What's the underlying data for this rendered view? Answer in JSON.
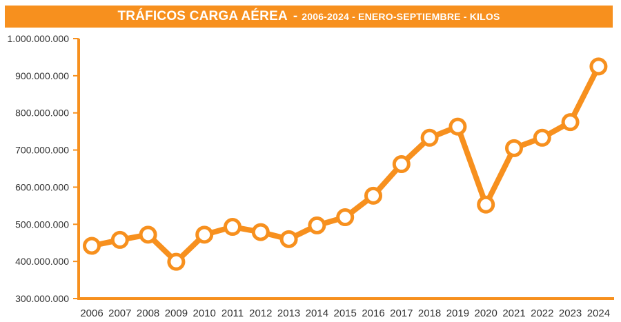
{
  "title": {
    "main": "TRÁFICOS CARGA AÉREA",
    "separator": "-",
    "subtitle": "2006-2024 - ENERO-SEPTIEMBRE - KILOS"
  },
  "colors": {
    "accent": "#f7901e",
    "text": "#333333",
    "background": "#ffffff"
  },
  "chart_data": {
    "type": "line",
    "title": "TRÁFICOS CARGA AÉREA - 2006-2024 - ENERO-SEPTIEMBRE - KILOS",
    "xlabel": "",
    "ylabel": "",
    "categories": [
      "2006",
      "2007",
      "2008",
      "2009",
      "2010",
      "2011",
      "2012",
      "2013",
      "2014",
      "2015",
      "2016",
      "2017",
      "2018",
      "2019",
      "2020",
      "2021",
      "2022",
      "2023",
      "2024"
    ],
    "series": [
      {
        "values": [
          442000000,
          458000000,
          472000000,
          399000000,
          472000000,
          493000000,
          479000000,
          460000000,
          497000000,
          519000000,
          577000000,
          662000000,
          733000000,
          763000000,
          553000000,
          705000000,
          733000000,
          775000000,
          925000000
        ]
      }
    ],
    "ylim": [
      300000000,
      1000000000
    ],
    "yticks": [
      300000000,
      400000000,
      500000000,
      600000000,
      700000000,
      800000000,
      900000000,
      1000000000
    ],
    "ytick_labels": [
      "300.000.000",
      "400.000.000",
      "500.000.000",
      "600.000.000",
      "700.000.000",
      "800.000.000",
      "900.000.000",
      "1.000.000.000"
    ],
    "grid": false,
    "legend": "none"
  }
}
